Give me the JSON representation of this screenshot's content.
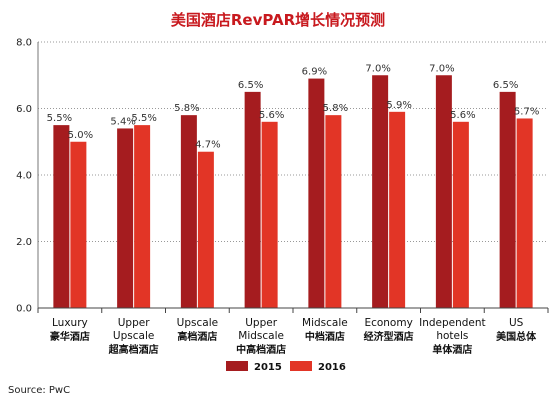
{
  "chart_data": {
    "type": "bar",
    "title": "美国酒店RevPAR增长情况预测",
    "categories": [
      {
        "en": [
          "Luxury"
        ],
        "zh": "豪华酒店"
      },
      {
        "en": [
          "Upper",
          "Upscale"
        ],
        "zh": "超高档酒店"
      },
      {
        "en": [
          "Upscale"
        ],
        "zh": "高档酒店"
      },
      {
        "en": [
          "Upper",
          "Midscale"
        ],
        "zh": "中高档酒店"
      },
      {
        "en": [
          "Midscale"
        ],
        "zh": "中档酒店"
      },
      {
        "en": [
          "Economy"
        ],
        "zh": "经济型酒店"
      },
      {
        "en": [
          "Independent",
          "hotels"
        ],
        "zh": "单体酒店"
      },
      {
        "en": [
          "US"
        ],
        "zh": "美国总体"
      }
    ],
    "series": [
      {
        "name": "2015",
        "color": "#a51c1f",
        "values": [
          5.5,
          5.4,
          5.8,
          6.5,
          6.9,
          7.0,
          7.0,
          6.5
        ],
        "labels": [
          "5.5%",
          "5.4%",
          "5.8%",
          "6.5%",
          "6.9%",
          "7.0%",
          "7.0%",
          "6.5%"
        ]
      },
      {
        "name": "2016",
        "color": "#e23526",
        "values": [
          5.0,
          5.5,
          4.7,
          5.6,
          5.8,
          5.9,
          5.6,
          5.7
        ],
        "labels": [
          "5.0%",
          "5.5%",
          "4.7%",
          "5.6%",
          "5.8%",
          "5.9%",
          "5.6%",
          "5.7%"
        ]
      }
    ],
    "ylim": [
      0,
      8
    ],
    "yticks": [
      "0.0",
      "2.0",
      "4.0",
      "6.0",
      "8.0"
    ],
    "grid": true,
    "legend": "bottom",
    "source": "Source: PwC"
  }
}
